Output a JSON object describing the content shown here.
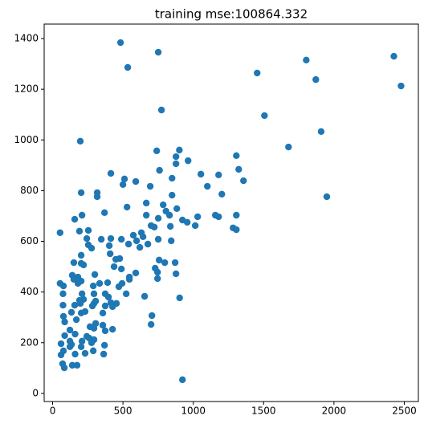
{
  "chart_data": {
    "type": "scatter",
    "title": "training mse:100864.332",
    "color": "#1f77b4",
    "xlim": [
      -60,
      2600
    ],
    "ylim": [
      -32,
      1457
    ],
    "xticks": [
      0,
      500,
      1000,
      1500,
      2000,
      2500
    ],
    "yticks": [
      0,
      200,
      400,
      600,
      800,
      1000,
      1200,
      1400
    ],
    "x": [
      483,
      751,
      534,
      2426,
      2477,
      1803,
      1871,
      1454,
      1506,
      774,
      197,
      1909,
      1677,
      1949,
      923,
      1306,
      901,
      740,
      877,
      963,
      877,
      1054,
      414,
      511,
      591,
      500,
      694,
      849,
      760,
      1180,
      1100,
      1323,
      1357,
      317,
      317,
      1203,
      203,
      849,
      666,
      786,
      883,
      806,
      666,
      751,
      1157,
      1180,
      1306,
      831,
      923,
      957,
      1031,
      1014,
      837,
      700,
      723,
      529,
      369,
      209,
      157,
      53,
      191,
      254,
      631,
      574,
      643,
      489,
      243,
      346,
      414,
      751,
      843,
      1283,
      1306,
      597,
      677,
      540,
      620,
      403,
      254,
      277,
      151,
      203,
      220,
      203,
      409,
      477,
      449,
      757,
      797,
      729,
      871,
      437,
      489,
      591,
      746,
      746,
      877,
      546,
      546,
      494,
      471,
      391,
      300,
      334,
      289,
      140,
      53,
      77,
      180,
      151,
      180,
      203,
      74,
      209,
      294,
      374,
      523,
      654,
      903,
      397,
      414,
      306,
      220,
      191,
      74,
      157,
      283,
      374,
      426,
      454,
      197,
      203,
      357,
      231,
      134,
      294,
      169,
      306,
      357,
      294,
      266,
      77,
      86,
      123,
      160,
      86,
      243,
      374,
      426,
      706,
      700,
      60,
      123,
      209,
      260,
      277,
      294,
      77,
      60,
      160,
      231,
      203,
      289,
      363,
      134,
      71,
      140,
      174,
      83,
      369,
      123
    ],
    "y": [
      1384,
      1346,
      1286,
      1330,
      1213,
      1315,
      1238,
      1264,
      1096,
      1118,
      995,
      1033,
      972,
      776,
      54,
      938,
      960,
      957,
      934,
      918,
      906,
      865,
      868,
      846,
      836,
      824,
      817,
      849,
      880,
      862,
      817,
      884,
      839,
      792,
      776,
      786,
      792,
      782,
      751,
      744,
      729,
      719,
      703,
      691,
      703,
      697,
      703,
      703,
      684,
      675,
      697,
      662,
      659,
      662,
      656,
      735,
      713,
      703,
      687,
      634,
      640,
      643,
      634,
      624,
      618,
      608,
      611,
      608,
      611,
      608,
      602,
      653,
      646,
      602,
      589,
      589,
      576,
      583,
      586,
      573,
      516,
      513,
      507,
      545,
      551,
      532,
      529,
      526,
      516,
      494,
      516,
      500,
      491,
      475,
      478,
      453,
      472,
      459,
      450,
      434,
      421,
      437,
      469,
      434,
      424,
      466,
      434,
      424,
      434,
      450,
      459,
      443,
      393,
      393,
      393,
      393,
      393,
      383,
      377,
      380,
      358,
      364,
      371,
      367,
      348,
      348,
      345,
      345,
      342,
      355,
      355,
      317,
      317,
      323,
      320,
      355,
      291,
      276,
      269,
      257,
      263,
      304,
      282,
      250,
      234,
      228,
      225,
      247,
      253,
      307,
      272,
      196,
      206,
      206,
      218,
      200,
      212,
      168,
      152,
      155,
      158,
      184,
      168,
      155,
      193,
      117,
      111,
      111,
      101,
      190,
      184
    ]
  }
}
